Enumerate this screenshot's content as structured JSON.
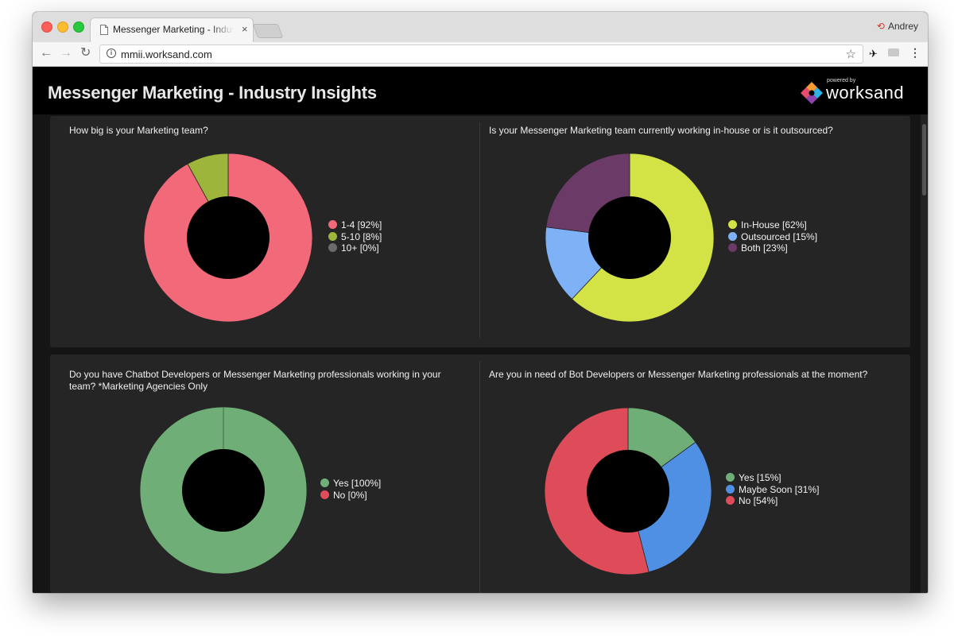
{
  "browser": {
    "tab_title": "Messenger Marketing - Industr",
    "tab_close": "×",
    "profile_name": "Andrey",
    "url": "mmii.worksand.com"
  },
  "header": {
    "title": "Messenger Marketing - Industry Insights",
    "brand_small": "powered by",
    "brand_name": "worksand"
  },
  "charts": [
    {
      "question": "How big is your Marketing team?",
      "slices": [
        {
          "label": "1-4 [92%]",
          "value": 92,
          "color": "#f2697a"
        },
        {
          "label": "5-10 [8%]",
          "value": 8,
          "color": "#9db53a"
        },
        {
          "label": "10+ [0%]",
          "value": 0,
          "color": "#6b6b6b"
        }
      ]
    },
    {
      "question": "Is your Messenger Marketing team currently working in-house or is it outsourced?",
      "slices": [
        {
          "label": "In-House [62%]",
          "value": 62,
          "color": "#d3e245"
        },
        {
          "label": "Outsourced [15%]",
          "value": 15,
          "color": "#7fb1f7"
        },
        {
          "label": "Both [23%]",
          "value": 23,
          "color": "#6b3a66"
        }
      ]
    },
    {
      "question": "Do you have Chatbot Developers or Messenger Marketing professionals working in your team? *Marketing Agencies Only",
      "slices": [
        {
          "label": "Yes [100%]",
          "value": 100,
          "color": "#70ae78"
        },
        {
          "label": "No [0%]",
          "value": 0,
          "color": "#e04c5a"
        }
      ]
    },
    {
      "question": "Are you in need of Bot Developers or Messenger Marketing professionals at the moment?",
      "slices": [
        {
          "label": "Yes [15%]",
          "value": 15,
          "color": "#70ae78"
        },
        {
          "label": "Maybe Soon [31%]",
          "value": 31,
          "color": "#5090e4"
        },
        {
          "label": "No [54%]",
          "value": 54,
          "color": "#de4c5a"
        }
      ]
    }
  ]
}
